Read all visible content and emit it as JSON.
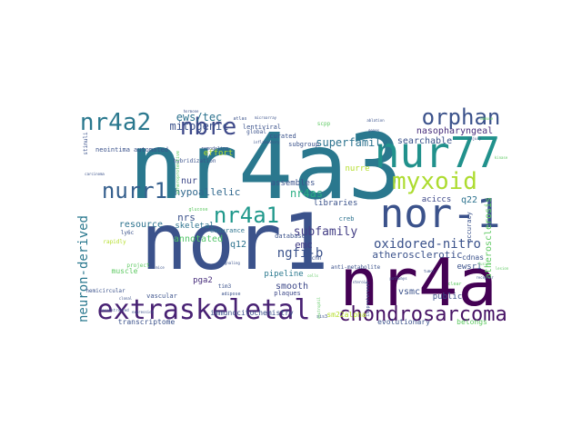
{
  "words": [
    {
      "text": "nr4a3",
      "color": "#2a788e"
    },
    {
      "text": "nor1",
      "color": "#3b528b"
    },
    {
      "text": "nr4a",
      "color": "#440154"
    },
    {
      "text": "nur77",
      "color": "#21918c"
    },
    {
      "text": "extraskeletal",
      "color": "#482173"
    },
    {
      "text": "nor-1",
      "color": "#3b528b"
    },
    {
      "text": "chondrosarcoma",
      "color": "#471365"
    },
    {
      "text": "orphan",
      "color": "#3b528b"
    },
    {
      "text": "myxoid",
      "color": "#addc30"
    },
    {
      "text": "nr4a2",
      "color": "#2a788e"
    },
    {
      "text": "nr4a1",
      "color": "#1f988b"
    },
    {
      "text": "nurr1",
      "color": "#355f8d"
    },
    {
      "text": "nbre",
      "color": "#3e4989"
    },
    {
      "text": "oxidored-nitro",
      "color": "#3b528b"
    },
    {
      "text": "neuron-derived",
      "color": "#2a788e"
    },
    {
      "text": "ngfi-b",
      "color": "#3b528b"
    },
    {
      "text": "subfamily",
      "color": "#433e85"
    },
    {
      "text": "superfamily",
      "color": "#2c728e"
    },
    {
      "text": "ews/tec",
      "color": "#2c728e"
    },
    {
      "text": "mitogenic",
      "color": "#3b528b"
    },
    {
      "text": "nr4as",
      "color": "#27ad81"
    },
    {
      "text": "hypoallelic",
      "color": "#30688e"
    },
    {
      "text": "atherosclerotic",
      "color": "#3b528b"
    },
    {
      "text": "atherosclerosis",
      "color": "#5ec962"
    },
    {
      "text": "emc",
      "color": "#433e85"
    },
    {
      "text": "nrs",
      "color": "#3b528b"
    },
    {
      "text": "nur",
      "color": "#3e4989"
    },
    {
      "text": "annotated",
      "color": "#52c569"
    },
    {
      "text": "searchable",
      "color": "#3b528b"
    },
    {
      "text": "nasopharyngeal",
      "color": "#472d7b"
    },
    {
      "text": "resource",
      "color": "#2c728e"
    },
    {
      "text": "smooth",
      "color": "#3e4989"
    },
    {
      "text": "q12",
      "color": "#2c728e"
    },
    {
      "text": "q22",
      "color": "#2c728e"
    },
    {
      "text": "vsmc",
      "color": "#3b528b"
    },
    {
      "text": "ewsr1",
      "color": "#3b528b"
    },
    {
      "text": "aciccs",
      "color": "#3e4989"
    },
    {
      "text": "pga2",
      "color": "#472d7b"
    },
    {
      "text": "pipeline",
      "color": "#2a788e"
    },
    {
      "text": "public",
      "color": "#3b528b"
    },
    {
      "text": "cdnas",
      "color": "#3b528b"
    },
    {
      "text": "skeletal",
      "color": "#2c728e"
    },
    {
      "text": "nurre",
      "color": "#b5de2b"
    },
    {
      "text": "assembles",
      "color": "#3b528b"
    },
    {
      "text": "libraries",
      "color": "#3b528b"
    },
    {
      "text": "effort",
      "color": "#b5de2b"
    },
    {
      "text": "muscle",
      "color": "#5ec962"
    },
    {
      "text": "transcriptome",
      "color": "#3b528b"
    },
    {
      "text": "immunocitochemistry",
      "color": "#3b528b"
    },
    {
      "text": "evolutionary",
      "color": "#3b528b"
    },
    {
      "text": "belongs",
      "color": "#5ec962"
    },
    {
      "text": "sm22alpha",
      "color": "#b5de2b"
    },
    {
      "text": "plaques",
      "color": "#3e4989"
    },
    {
      "text": "curated",
      "color": "#3b528b"
    },
    {
      "text": "subgroup",
      "color": "#3b528b"
    },
    {
      "text": "lentiviral",
      "color": "#3b528b"
    },
    {
      "text": "neointima",
      "color": "#3b528b"
    },
    {
      "text": "automated",
      "color": "#3b528b"
    },
    {
      "text": "endurance",
      "color": "#2c728e"
    },
    {
      "text": "database",
      "color": "#3b528b"
    },
    {
      "text": "creb",
      "color": "#2c728e"
    },
    {
      "text": "accuracy",
      "color": "#3b528b"
    },
    {
      "text": "global",
      "color": "#3b528b"
    },
    {
      "text": "anti-metabolite",
      "color": "#3b528b"
    },
    {
      "text": "tim3",
      "color": "#3b528b"
    },
    {
      "text": "vascular",
      "color": "#3b528b"
    },
    {
      "text": "project",
      "color": "#5ec962"
    },
    {
      "text": "chn",
      "color": "#3b528b"
    },
    {
      "text": "stimuli",
      "color": "#3b528b"
    },
    {
      "text": "ly6c",
      "color": "#3b528b"
    },
    {
      "text": "rapidly",
      "color": "#b5de2b"
    },
    {
      "text": "hybridization",
      "color": "#3b528b"
    },
    {
      "text": "atheroprotective",
      "color": "#5ec962"
    },
    {
      "text": "remodeling",
      "color": "#3b528b"
    },
    {
      "text": "atlas",
      "color": "#3b528b"
    },
    {
      "text": "scpp",
      "color": "#5ec962"
    },
    {
      "text": "hemicircular",
      "color": "#3b528b"
    },
    {
      "text": "adipose",
      "color": "#3b528b"
    },
    {
      "text": "glucose",
      "color": "#5ec962"
    },
    {
      "text": "isoproterenol",
      "color": "#3b528b"
    },
    {
      "text": "sis3",
      "color": "#3b528b"
    },
    {
      "text": "clear",
      "color": "#5ec962"
    },
    {
      "text": "reconstructed",
      "color": "#3b528b"
    },
    {
      "text": "inflammatory",
      "color": "#3b528b"
    },
    {
      "text": "neutrophil",
      "color": "#5ec962"
    },
    {
      "text": "clonal",
      "color": "#3b528b"
    },
    {
      "text": "ablation",
      "color": "#3b528b"
    },
    {
      "text": "immune",
      "color": "#5ec962"
    },
    {
      "text": "microarray",
      "color": "#3b528b"
    },
    {
      "text": "pathways",
      "color": "#3b528b"
    },
    {
      "text": "kinase",
      "color": "#5ec962"
    },
    {
      "text": "injury",
      "color": "#3b528b"
    },
    {
      "text": "steroid",
      "color": "#3b528b"
    },
    {
      "text": "receptor",
      "color": "#3b528b"
    },
    {
      "text": "fusion",
      "color": "#5ec962"
    },
    {
      "text": "tumor",
      "color": "#3b528b"
    },
    {
      "text": "genes",
      "color": "#3b528b"
    },
    {
      "text": "carcinoma",
      "color": "#3b528b"
    },
    {
      "text": "signaling",
      "color": "#3b528b"
    },
    {
      "text": "cells",
      "color": "#5ec962"
    },
    {
      "text": "expression",
      "color": "#3b528b"
    },
    {
      "text": "mice",
      "color": "#3b528b"
    },
    {
      "text": "lesion",
      "color": "#5ec962"
    },
    {
      "text": "hormone",
      "color": "#3b528b"
    }
  ]
}
